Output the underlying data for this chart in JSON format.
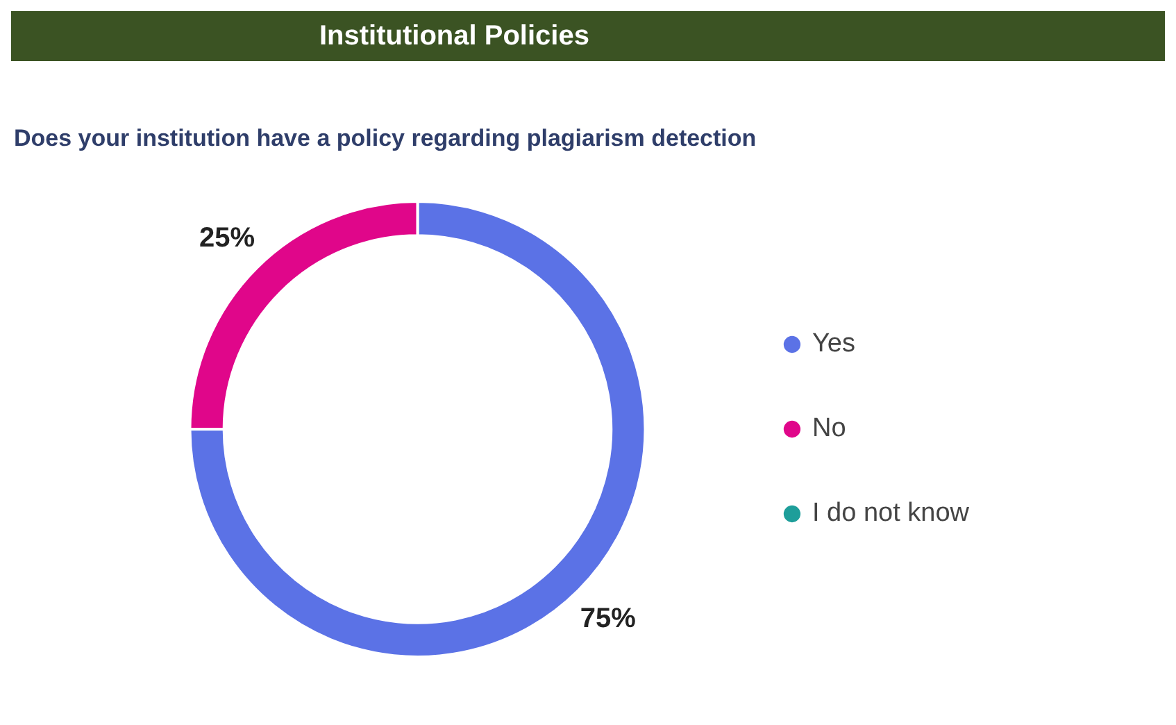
{
  "chart_data": {
    "type": "donut",
    "title": "Institutional Policies",
    "subtitle": "Does your institution have a policy regarding plagiarism detection",
    "categories": [
      "Yes",
      "No",
      "I do not know"
    ],
    "values": [
      75,
      25,
      0
    ],
    "colors": [
      "#5b72e6",
      "#e0068a",
      "#1e9e9a"
    ],
    "value_labels": [
      "75%",
      "25%",
      null
    ],
    "legend": "right"
  }
}
